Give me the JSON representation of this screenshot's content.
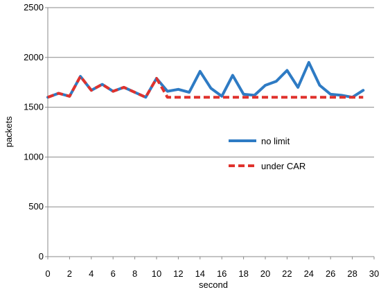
{
  "chart_data": {
    "type": "line",
    "xlabel": "second",
    "ylabel": "packets",
    "xlim": [
      0,
      30
    ],
    "ylim": [
      0,
      2500
    ],
    "x_ticks": [
      "0",
      "2",
      "4",
      "6",
      "8",
      "10",
      "12",
      "14",
      "16",
      "18",
      "20",
      "22",
      "24",
      "26",
      "28",
      "30"
    ],
    "y_ticks": [
      "0",
      "500",
      "1000",
      "1500",
      "2000",
      "2500"
    ],
    "grid": "horizontal",
    "legend_position": "right-middle",
    "x": [
      0,
      1,
      2,
      3,
      4,
      5,
      6,
      7,
      8,
      9,
      10,
      11,
      12,
      13,
      14,
      15,
      16,
      17,
      18,
      19,
      20,
      21,
      22,
      23,
      24,
      25,
      26,
      27,
      28,
      29
    ],
    "series": [
      {
        "name": "no limit",
        "color": "#2e7bc4",
        "style": "solid",
        "values": [
          1600,
          1640,
          1610,
          1810,
          1670,
          1730,
          1660,
          1700,
          1650,
          1600,
          1790,
          1660,
          1680,
          1650,
          1860,
          1690,
          1610,
          1820,
          1630,
          1620,
          1720,
          1760,
          1870,
          1700,
          1950,
          1720,
          1630,
          1620,
          1600,
          1670
        ]
      },
      {
        "name": "under CAR",
        "color": "#e0322d",
        "style": "dashed",
        "values": [
          1600,
          1640,
          1610,
          1810,
          1670,
          1730,
          1660,
          1700,
          1650,
          1600,
          1790,
          1600,
          1600,
          1600,
          1600,
          1600,
          1600,
          1600,
          1600,
          1600,
          1600,
          1600,
          1600,
          1600,
          1600,
          1600,
          1600,
          1600,
          1600,
          1600
        ]
      }
    ]
  }
}
